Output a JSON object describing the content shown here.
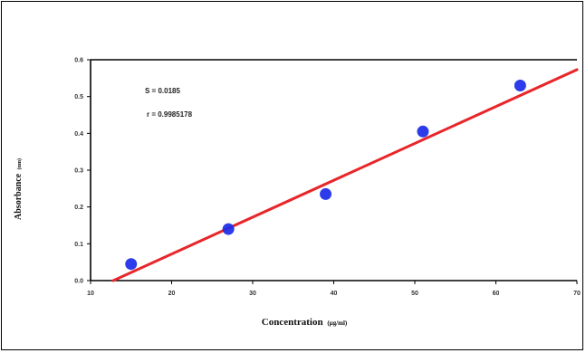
{
  "chart_data": {
    "type": "scatter",
    "xlabel": "Concentration",
    "xlabel_unit": "(µg/ml)",
    "ylabel": "Absorbance",
    "ylabel_unit": "(nm)",
    "x_ticks": [
      "10",
      "20",
      "30",
      "40",
      "50",
      "60",
      "70"
    ],
    "y_ticks": [
      "0.0",
      "0.1",
      "0.2",
      "0.3",
      "0.4",
      "0.5",
      "0.6"
    ],
    "xlim": [
      10,
      70
    ],
    "ylim": [
      0.0,
      0.6
    ],
    "points": [
      {
        "x": 15,
        "y": 0.045
      },
      {
        "x": 27,
        "y": 0.14
      },
      {
        "x": 39,
        "y": 0.235
      },
      {
        "x": 51,
        "y": 0.405
      },
      {
        "x": 63,
        "y": 0.53
      }
    ],
    "fit_line": {
      "x": [
        12.8,
        70
      ],
      "y": [
        0.0,
        0.573
      ]
    },
    "annotations": [
      "S  = 0.0185",
      "r = 0.9985178"
    ],
    "colors": {
      "points": "#1a2be8",
      "fit_line": "#e8262a",
      "axes": "#000000"
    },
    "grid": false,
    "legend": "none"
  }
}
